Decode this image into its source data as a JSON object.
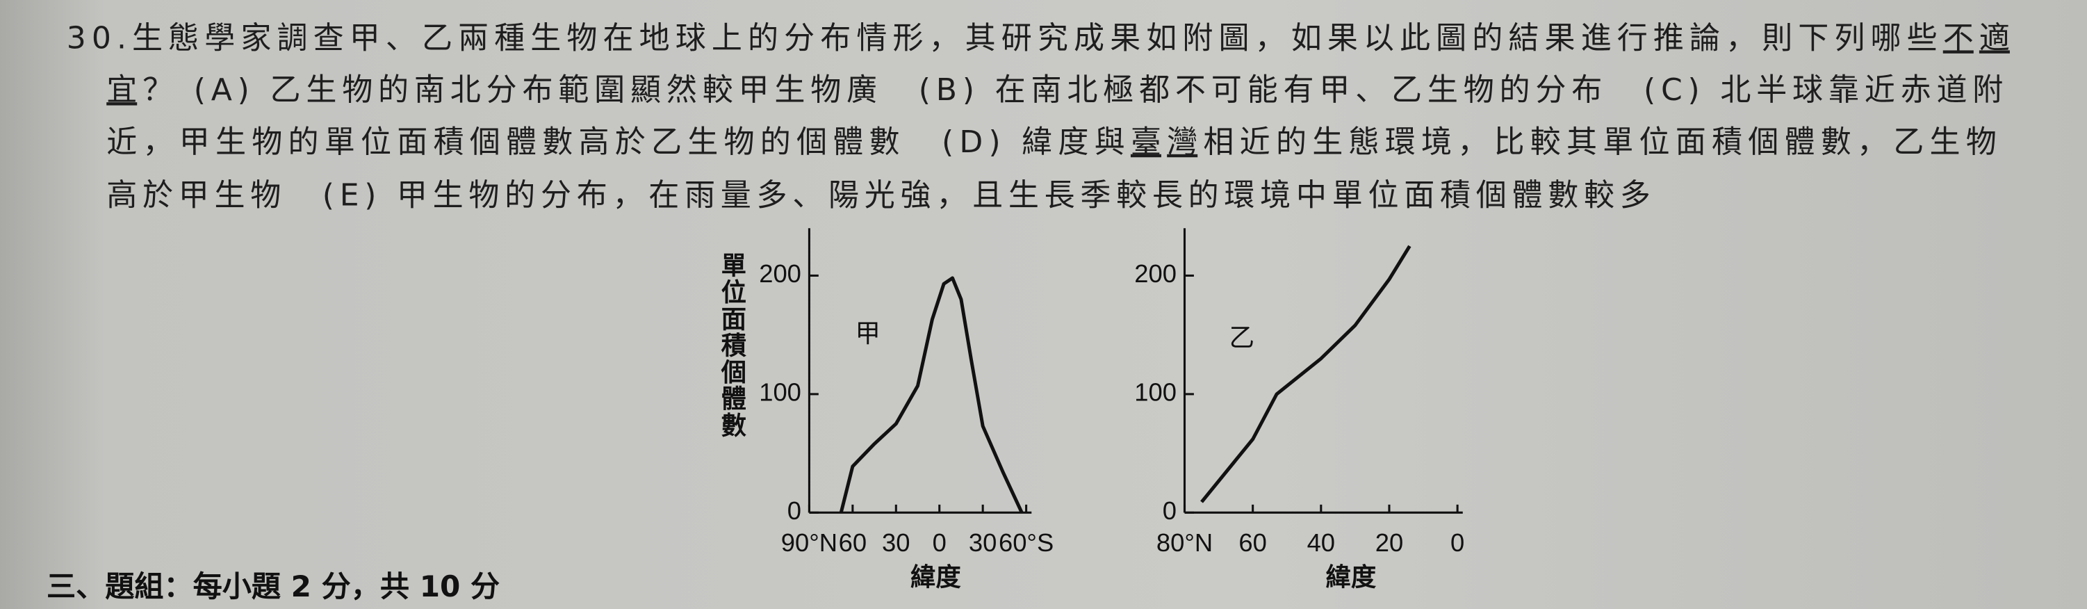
{
  "question": {
    "lines": [
      [
        {
          "text": "30.生態學家調查甲、乙兩種生物在地球上的分布情形，其研究成果如附圖，如果以此圖的結果進行推論，則下列哪些"
        },
        {
          "text": "不適",
          "underline": true
        }
      ],
      [
        {
          "text": "宜",
          "underline": true
        },
        {
          "text": "？ (A) 乙生物的南北分布範圍顯然較甲生物廣　(B) 在南北極都不可能有甲、乙生物的分布　(C) 北半球靠近赤道附"
        }
      ],
      [
        {
          "text": "近，甲生物的單位面積個體數高於乙生物的個體數　(D) 緯度與"
        },
        {
          "text": "臺灣",
          "underline": true
        },
        {
          "text": "相近的生態環境，比較其單位面積個體數，乙生物"
        }
      ],
      [
        {
          "text": "高於甲生物　(E) 甲生物的分布，在雨量多、陽光強，且生長季較長的環境中單位面積個體數較多"
        }
      ]
    ]
  },
  "section_heading": "三、題組：每小題 2 分，共 10 分",
  "chart_data": [
    {
      "type": "line",
      "y_label": "單位面積個體數",
      "x_label": "緯度",
      "annotation": "甲",
      "color": "#111111",
      "x": [
        68,
        60,
        45,
        30,
        15,
        5,
        -3,
        -9,
        -15,
        -22,
        -30,
        -44,
        -57
      ],
      "values": [
        0,
        39,
        58,
        75,
        107,
        163,
        193,
        198,
        180,
        129,
        73,
        34,
        0
      ],
      "xlim": [
        90,
        -60
      ],
      "xticks": [
        {
          "value": 90,
          "label": "90°N"
        },
        60,
        30,
        0,
        {
          "value": -30,
          "label": "30"
        },
        {
          "value": -60,
          "label": "60°S"
        }
      ],
      "ylim": [
        0,
        240
      ],
      "yticks": [
        0,
        100,
        200
      ]
    },
    {
      "type": "line",
      "x_label": "緯度",
      "annotation": "乙",
      "color": "#111111",
      "x": [
        75,
        60,
        53,
        40,
        30,
        20,
        14
      ],
      "values": [
        9,
        62,
        100,
        130,
        158,
        197,
        225
      ],
      "xlim": [
        80,
        0
      ],
      "xticks": [
        {
          "value": 80,
          "label": "80°N"
        },
        60,
        40,
        20,
        0
      ],
      "ylim": [
        0,
        240
      ],
      "yticks": [
        0,
        100,
        200
      ]
    }
  ]
}
